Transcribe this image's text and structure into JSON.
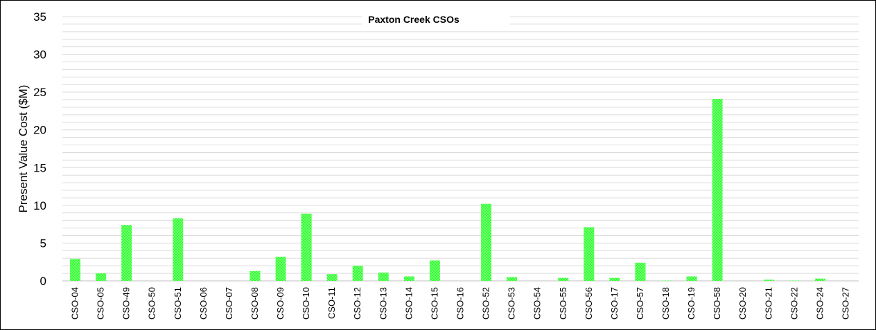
{
  "chart_data": {
    "type": "bar",
    "title": "Paxton Creek CSOs",
    "xlabel": "",
    "ylabel": "Present Value Cost ($M)",
    "ylim": [
      0,
      35
    ],
    "yticks": [
      0,
      5,
      10,
      15,
      20,
      25,
      30,
      35
    ],
    "minor_gridlines_per_major": 5,
    "grid": true,
    "legend": "none",
    "bar_color": "#33ff33",
    "bar_pattern": "dotted",
    "categories": [
      "CSO-04",
      "CSO-05",
      "CSO-49",
      "CSO-50",
      "CSO-51",
      "CSO-06",
      "CSO-07",
      "CSO-08",
      "CSO-09",
      "CSO-10",
      "CSO-11",
      "CSO-12",
      "CSO-13",
      "CSO-14",
      "CSO-15",
      "CSO-16",
      "CSO-52",
      "CSO-53",
      "CSO-54",
      "CSO-55",
      "CSO-56",
      "CSO-17",
      "CSO-57",
      "CSO-18",
      "CSO-19",
      "CSO-58",
      "CSO-20",
      "CSO-21",
      "CSO-22",
      "CSO-24",
      "CSO-27"
    ],
    "values": [
      2.9,
      1.0,
      7.4,
      0,
      8.3,
      0,
      0,
      1.3,
      3.2,
      8.9,
      0.9,
      2.0,
      1.1,
      0.6,
      2.7,
      0,
      10.2,
      0.5,
      0,
      0.4,
      7.1,
      0.4,
      2.4,
      0.05,
      0.6,
      24.1,
      0,
      0.15,
      0.05,
      0.3,
      0
    ]
  }
}
